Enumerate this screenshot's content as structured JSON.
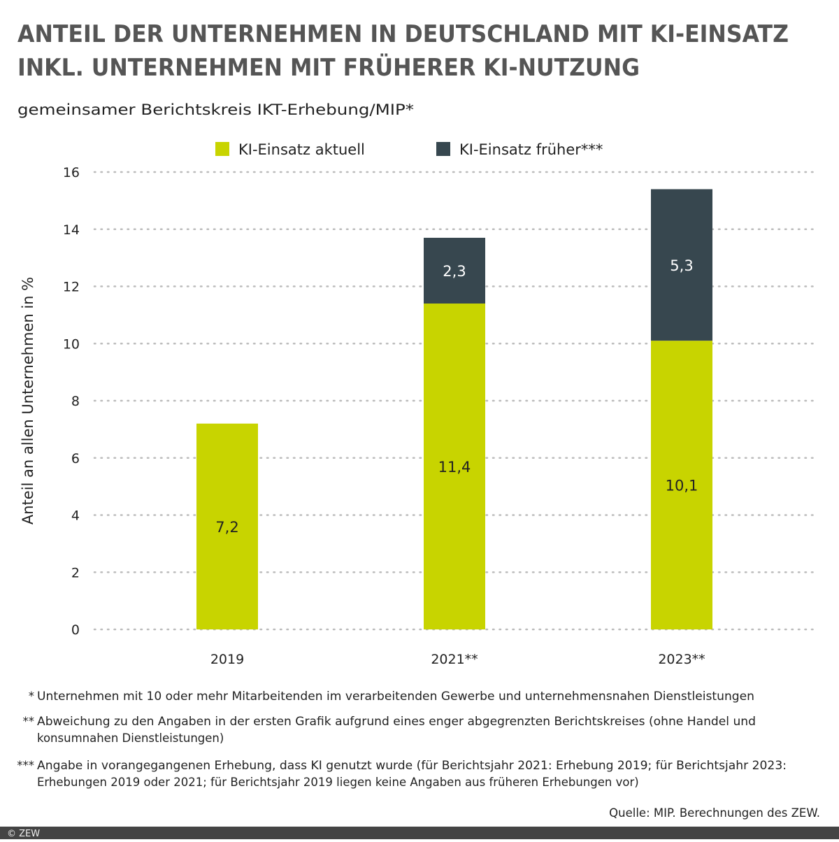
{
  "title_lines": [
    "ANTEIL DER UNTERNEHMEN IN DEUTSCHLAND MIT KI-EINSATZ",
    "INKL. UNTERNEHMEN MIT FRÜHERER KI-NUTZUNG"
  ],
  "subtitle": "gemeinsamer Berichtskreis IKT-Erhebung/MIP*",
  "chart_data": {
    "type": "bar",
    "stacked": true,
    "categories": [
      "2019",
      "2021**",
      "2023**"
    ],
    "series": [
      {
        "name": "KI-Einsatz aktuell",
        "values": [
          7.2,
          11.4,
          10.1
        ],
        "labels": [
          "7,2",
          "11,4",
          "10,1"
        ],
        "color": "#c8d400",
        "label_color": "#222222"
      },
      {
        "name": "KI-Einsatz früher***",
        "values": [
          null,
          2.3,
          5.3
        ],
        "labels": [
          "",
          "2,3",
          "5,3"
        ],
        "color": "#37474f",
        "label_color": "#ffffff"
      }
    ],
    "ylabel": "Anteil an allen Unternehmen in %",
    "xlabel": "",
    "ylim": [
      0,
      16
    ],
    "yticks": [
      "0",
      "2",
      "4",
      "6",
      "8",
      "10",
      "12",
      "14",
      "16"
    ],
    "grid": true,
    "legend_position": "top"
  },
  "footnotes": [
    {
      "marker": "*",
      "lines": [
        "Unternehmen mit 10 oder mehr Mitarbeitenden im verarbeitenden Gewerbe und unternehmensnahen Dienstleistungen"
      ]
    },
    {
      "marker": "**",
      "lines": [
        "Abweichung zu den Angaben in der ersten Grafik aufgrund eines enger abgegrenzten Berichtskreises (ohne Handel und",
        "konsumnahen Dienstleistungen)"
      ]
    },
    {
      "marker": "***",
      "lines": [
        "Angabe in vorangegangenen Erhebung, dass KI genutzt wurde (für Berichtsjahr 2021: Erhebung 2019; für Berichtsjahr 2023:",
        "Erhebungen 2019 oder 2021; für Berichtsjahr 2019 liegen keine Angaben aus früheren Erhebungen vor)"
      ]
    }
  ],
  "source": "Quelle: MIP. Berechnungen des ZEW.",
  "copyright": "© ZEW"
}
